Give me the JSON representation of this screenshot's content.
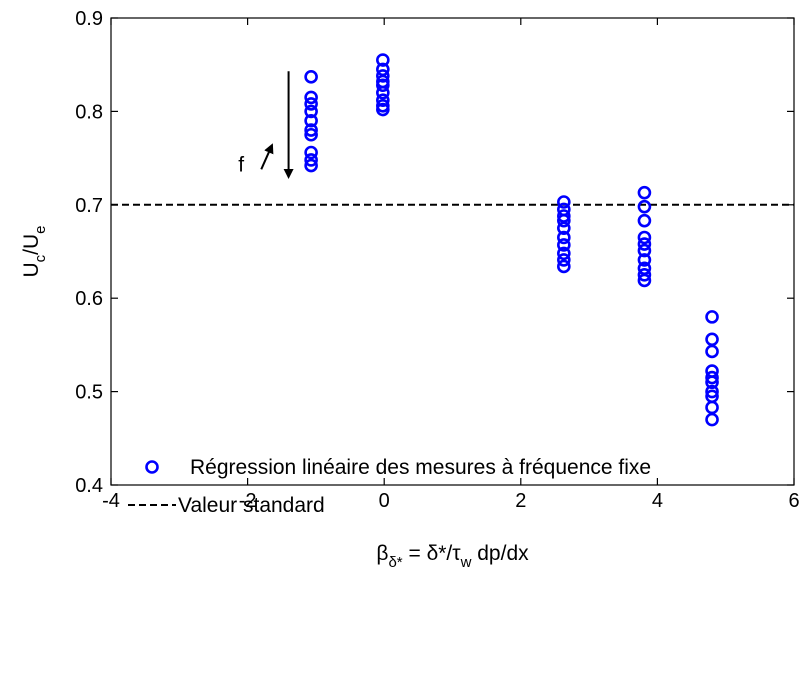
{
  "chart_data": {
    "type": "scatter",
    "xlim": [
      -4,
      6
    ],
    "ylim": [
      0.4,
      0.9
    ],
    "x_ticks": [
      -4,
      -2,
      0,
      2,
      4,
      6
    ],
    "y_ticks": [
      0.4,
      0.5,
      0.6,
      0.7,
      0.8,
      0.9
    ],
    "x_tick_labels": [
      "-4",
      "-2",
      "0",
      "2",
      "4",
      "6"
    ],
    "y_tick_labels": [
      "0.4",
      "0.5",
      "0.6",
      "0.7",
      "0.8",
      "0.9"
    ],
    "grid": false,
    "legend_position": "bottom",
    "xlabel": {
      "beta": "β",
      "beta_sub": "δ*",
      "middle": " = δ*/τ",
      "tau_sub": "w",
      "end": " dp/dx"
    },
    "ylabel": {
      "main": "U",
      "sub1": "c",
      "sep": "/U",
      "sub2": "e"
    },
    "series": [
      {
        "name": "Régression linéaire des mesures à fréquence fixe",
        "marker": "circle",
        "color": "#0000ff",
        "points": [
          [
            -1.07,
            0.837
          ],
          [
            -1.07,
            0.815
          ],
          [
            -1.07,
            0.808
          ],
          [
            -1.07,
            0.8
          ],
          [
            -1.07,
            0.79
          ],
          [
            -1.07,
            0.78
          ],
          [
            -1.07,
            0.775
          ],
          [
            -1.07,
            0.756
          ],
          [
            -1.07,
            0.748
          ],
          [
            -1.07,
            0.742
          ],
          [
            -0.02,
            0.855
          ],
          [
            -0.02,
            0.845
          ],
          [
            -0.02,
            0.838
          ],
          [
            -0.02,
            0.832
          ],
          [
            -0.02,
            0.828
          ],
          [
            -0.02,
            0.82
          ],
          [
            -0.02,
            0.812
          ],
          [
            -0.02,
            0.806
          ],
          [
            -0.02,
            0.802
          ],
          [
            2.63,
            0.703
          ],
          [
            2.63,
            0.695
          ],
          [
            2.63,
            0.688
          ],
          [
            2.63,
            0.683
          ],
          [
            2.63,
            0.675
          ],
          [
            2.63,
            0.665
          ],
          [
            2.63,
            0.657
          ],
          [
            2.63,
            0.648
          ],
          [
            2.63,
            0.641
          ],
          [
            2.63,
            0.634
          ],
          [
            3.81,
            0.713
          ],
          [
            3.81,
            0.698
          ],
          [
            3.81,
            0.683
          ],
          [
            3.81,
            0.665
          ],
          [
            3.81,
            0.658
          ],
          [
            3.81,
            0.651
          ],
          [
            3.81,
            0.641
          ],
          [
            3.81,
            0.632
          ],
          [
            3.81,
            0.625
          ],
          [
            3.81,
            0.619
          ],
          [
            4.8,
            0.58
          ],
          [
            4.8,
            0.556
          ],
          [
            4.8,
            0.543
          ],
          [
            4.8,
            0.522
          ],
          [
            4.8,
            0.515
          ],
          [
            4.8,
            0.51
          ],
          [
            4.8,
            0.5
          ],
          [
            4.8,
            0.495
          ],
          [
            4.8,
            0.483
          ],
          [
            4.8,
            0.47
          ]
        ]
      },
      {
        "name": "Valeur standard",
        "line": "dashed",
        "color": "#000000",
        "y": 0.7
      }
    ],
    "annotations": {
      "f_label": "f",
      "f_arrow": {
        "from": [
          -1.8,
          0.738
        ],
        "to": [
          -1.66,
          0.761
        ],
        "direction": "up-right"
      },
      "down_arrow": {
        "x": -1.4,
        "from_y": 0.843,
        "to_y": 0.733,
        "direction": "down"
      }
    }
  }
}
